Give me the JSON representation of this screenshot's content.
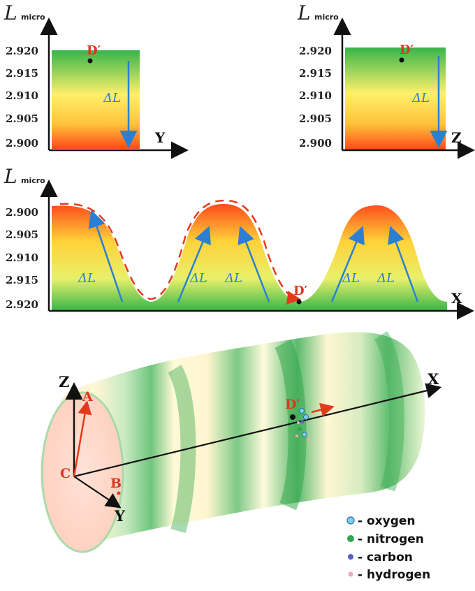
{
  "colors": {
    "gradient_high": "#ff5a1f",
    "gradient_mid": "#ffe04a",
    "gradient_low": "#36b54a",
    "arrow_blue": "#2a7fd4",
    "arrow_red": "#e33a1c",
    "label_red": "#d9381e",
    "axis_black": "#111111"
  },
  "plot_y": {
    "ylabel_main": "L",
    "ylabel_sub": "micro",
    "ticks": [
      "2.920",
      "2.915",
      "2.910",
      "2.905",
      "2.900"
    ],
    "axis_label": "Y",
    "point_label": "D′",
    "delta_label": "ΔL"
  },
  "plot_z": {
    "ylabel_main": "L",
    "ylabel_sub": "micro",
    "ticks": [
      "2.920",
      "2.915",
      "2.910",
      "2.905",
      "2.900"
    ],
    "axis_label": "Z",
    "point_label": "D′",
    "delta_label": "ΔL"
  },
  "plot_x": {
    "ylabel_main": "L",
    "ylabel_sub": "micro",
    "ticks": [
      "2.900",
      "2.905",
      "2.910",
      "2.915",
      "2.920"
    ],
    "axis_label": "X",
    "point_label": "D′",
    "delta_label": "ΔL"
  },
  "tube": {
    "axes": {
      "x": "X",
      "y": "Y",
      "z": "Z"
    },
    "points": {
      "a": "A",
      "b": "B",
      "c": "C",
      "d": "D′"
    }
  },
  "legend": [
    {
      "label": "- oxygen",
      "color": "#7fd0f0",
      "icon": "oxygen-atom-icon"
    },
    {
      "label": "- nitrogen",
      "color": "#2ea84a",
      "icon": "nitrogen-atom-icon"
    },
    {
      "label": "- carbon",
      "color": "#5a5fc8",
      "icon": "carbon-atom-icon"
    },
    {
      "label": "- hydrogen",
      "color": "#f2a6c6",
      "icon": "hydrogen-atom-icon"
    }
  ]
}
